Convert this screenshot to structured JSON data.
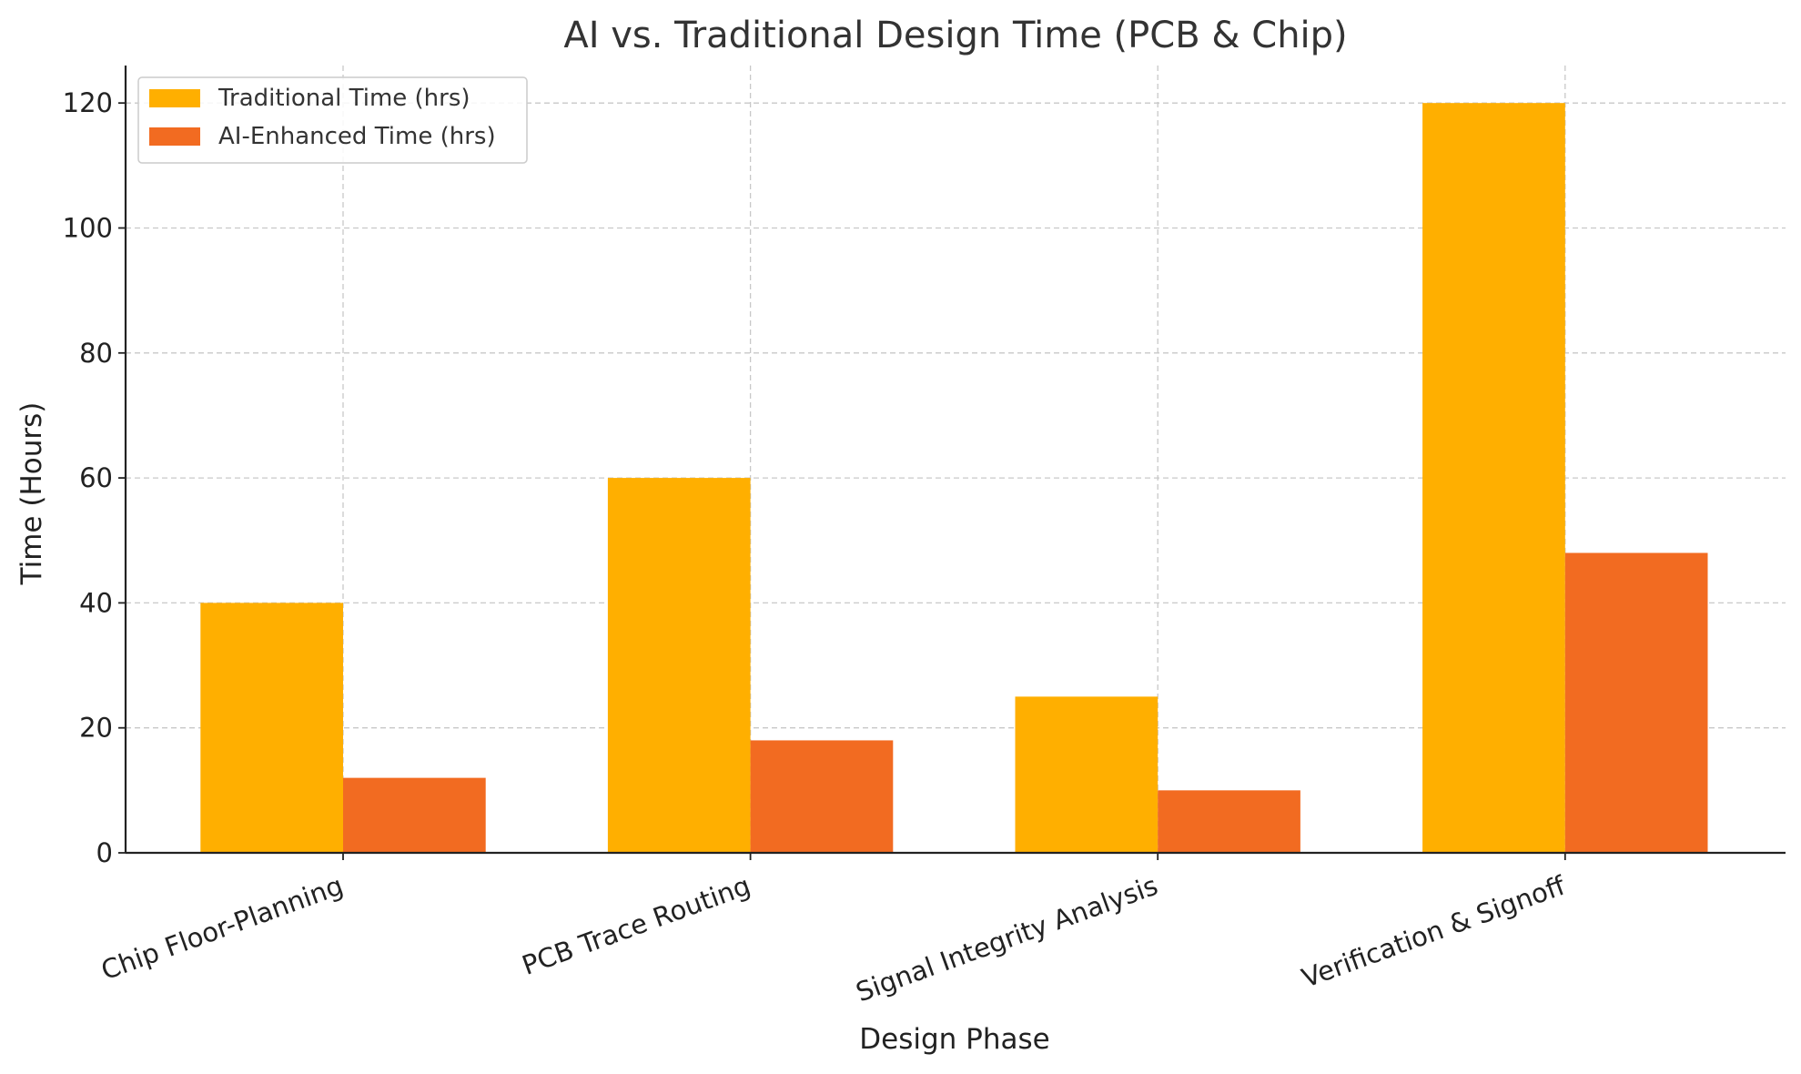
{
  "chart_data": {
    "type": "bar",
    "title": "AI vs. Traditional Design Time (PCB & Chip)",
    "xlabel": "Design Phase",
    "ylabel": "Time (Hours)",
    "categories": [
      "Chip Floor-Planning",
      "PCB Trace Routing",
      "Signal Integrity Analysis",
      "Verification & Signoff"
    ],
    "series": [
      {
        "name": "Traditional Time (hrs)",
        "values": [
          40,
          60,
          25,
          120
        ],
        "color": "#FFAF00"
      },
      {
        "name": "AI-Enhanced Time (hrs)",
        "values": [
          12,
          18,
          10,
          48
        ],
        "color": "#F26B21"
      }
    ],
    "ylim": [
      0,
      126
    ],
    "yticks": [
      0,
      20,
      40,
      60,
      80,
      100,
      120
    ],
    "grid": true,
    "legend_position": "top-left"
  }
}
